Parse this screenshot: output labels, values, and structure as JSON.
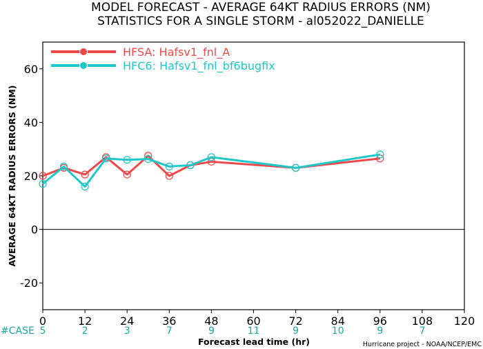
{
  "chart_data": {
    "type": "line",
    "title": "MODEL FORECAST - AVERAGE 64KT RADIUS ERRORS (NM)",
    "subtitle": "STATISTICS FOR A SINGLE STORM - al052022_DANIELLE",
    "xlabel": "Forecast lead time (hr)",
    "ylabel": "AVERAGE 64KT RADIUS ERRORS (NM)",
    "xlim": [
      0,
      120
    ],
    "ylim": [
      -30,
      70
    ],
    "xticks": [
      0,
      12,
      24,
      36,
      48,
      60,
      72,
      84,
      96,
      108,
      120
    ],
    "yticks": [
      -20,
      0,
      20,
      40,
      60
    ],
    "zero_line": true,
    "grid": false,
    "legend_position": "top-left",
    "series": [
      {
        "name": "HFSA: Hafsv1_fnl_A",
        "color": "#f04848",
        "x": [
          0,
          6,
          12,
          18,
          24,
          30,
          36,
          42,
          48,
          72,
          96
        ],
        "y": [
          20,
          23,
          20.5,
          27,
          20.5,
          27.5,
          20,
          24,
          25.3,
          23,
          26.5
        ]
      },
      {
        "name": "HFC6: Hafsv1_fnl_bf6bugfix",
        "color": "#1ec8c8",
        "x": [
          0,
          6,
          12,
          18,
          24,
          30,
          36,
          42,
          48,
          72,
          96
        ],
        "y": [
          17,
          23.5,
          16,
          26.5,
          26,
          26.3,
          23.5,
          24,
          27,
          23,
          28
        ]
      }
    ],
    "case_label": "#CASE",
    "cases": [
      {
        "x": 0,
        "n": "5"
      },
      {
        "x": 12,
        "n": "2"
      },
      {
        "x": 24,
        "n": "3"
      },
      {
        "x": 36,
        "n": "7"
      },
      {
        "x": 48,
        "n": "9"
      },
      {
        "x": 60,
        "n": "11"
      },
      {
        "x": 72,
        "n": "9"
      },
      {
        "x": 84,
        "n": "10"
      },
      {
        "x": 96,
        "n": "9"
      },
      {
        "x": 108,
        "n": "7"
      }
    ],
    "credit": "Hurricane project - NOAA/NCEP/EMC"
  }
}
